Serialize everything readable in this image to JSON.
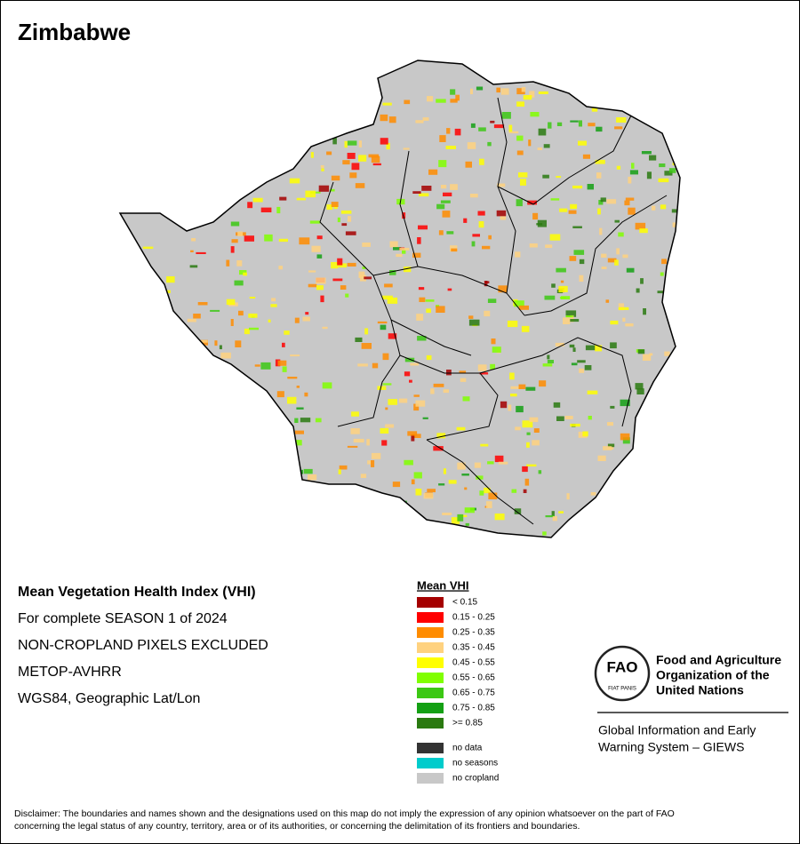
{
  "title": "Zimbabwe",
  "info": [
    "Mean Vegetation Health Index (VHI)",
    "For complete SEASON 1 of 2024",
    "NON-CROPLAND PIXELS EXCLUDED",
    "METOP-AVHRR",
    "WGS84, Geographic Lat/Lon"
  ],
  "legend": {
    "title": "Mean VHI",
    "items": [
      {
        "label": "< 0.15",
        "color": "#a50000"
      },
      {
        "label": "0.15 - 0.25",
        "color": "#ff0000"
      },
      {
        "label": "0.25 - 0.35",
        "color": "#ff8c00"
      },
      {
        "label": "0.35 - 0.45",
        "color": "#ffd27f"
      },
      {
        "label": "0.45 - 0.55",
        "color": "#ffff00"
      },
      {
        "label": "0.55 - 0.65",
        "color": "#80ff00"
      },
      {
        "label": "0.65 - 0.75",
        "color": "#3cc814"
      },
      {
        "label": "0.75 - 0.85",
        "color": "#14a014"
      },
      {
        "label": ">= 0.85",
        "color": "#2a7a10"
      }
    ],
    "extra": [
      {
        "label": "no data",
        "color": "#333333"
      },
      {
        "label": "no seasons",
        "color": "#00cccc"
      },
      {
        "label": "no cropland",
        "color": "#c8c8c8"
      }
    ]
  },
  "logo": {
    "emblem": "FAO",
    "motto": "FIAT PANIS",
    "organization": [
      "Food and Agriculture",
      "Organization of the",
      "United Nations"
    ],
    "system": [
      "Global Information and Early",
      "Warning System – GIEWS"
    ]
  },
  "disclaimer": [
    "Disclaimer: The boundaries and names shown and the designations used on this map do not imply the expression of any opinion whatsoever on the part of FAO",
    "concerning the legal status of any country, territory, area or of its authorities, or concerning the delimitation of its frontiers and boundaries."
  ]
}
